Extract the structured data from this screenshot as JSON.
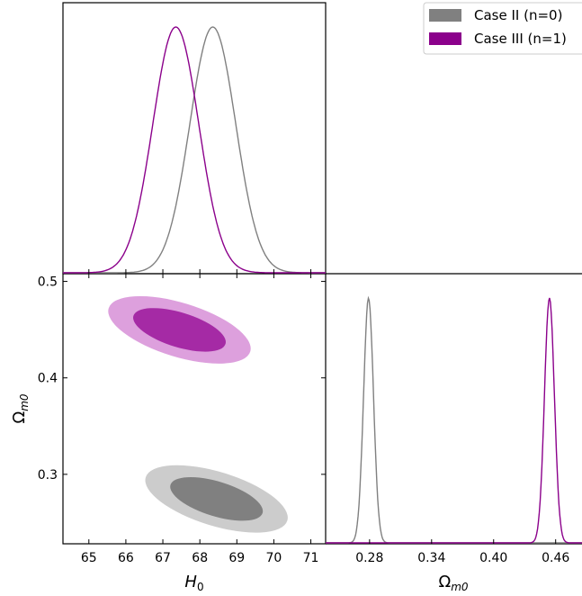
{
  "chart_data": {
    "type": "triangle-plot",
    "series": [
      {
        "name": "Case II (n=0)",
        "line_color": "#808080",
        "fill_outer": "#cccccc",
        "fill_inner": "#808080",
        "H0_peak": 68.35,
        "H0_sigma": 0.62,
        "Om_peak": 0.279,
        "Om_sigma": 0.0048,
        "contour_center": [
          68.45,
          0.2745
        ],
        "contour_outer_halfwidth_H0": 2.0,
        "contour_outer_halfwidth_Om": 0.028,
        "contour_inner_halfwidth_H0": 1.3,
        "contour_inner_halfwidth_Om": 0.018
      },
      {
        "name": "Case III (n=1)",
        "line_color": "#8b008b",
        "fill_outer": "#dda0dd",
        "fill_inner": "#a52aa5",
        "H0_peak": 67.35,
        "H0_sigma": 0.62,
        "Om_peak": 0.454,
        "Om_sigma": 0.0048,
        "contour_center": [
          67.45,
          0.4498
        ],
        "contour_outer_halfwidth_H0": 2.0,
        "contour_outer_halfwidth_Om": 0.028,
        "contour_inner_halfwidth_H0": 1.3,
        "contour_inner_halfwidth_Om": 0.018
      }
    ],
    "panels": {
      "H0_1d": {
        "xlim": [
          64.3,
          71.4
        ]
      },
      "contour": {
        "xlim": [
          64.3,
          71.4
        ],
        "ylim": [
          0.228,
          0.508
        ],
        "xlabel": "H_0",
        "ylabel": "Ω_m0"
      },
      "Om_1d": {
        "xlim": [
          0.2375,
          0.4855
        ],
        "xlabel": "Ω_m0"
      }
    },
    "ticks": {
      "H0": [
        65,
        66,
        67,
        68,
        69,
        70,
        71
      ],
      "Om_y": [
        0.3,
        0.4,
        0.5
      ],
      "Om_x": [
        0.28,
        0.34,
        0.4,
        0.46
      ]
    },
    "tick_labels": {
      "H0": [
        "65",
        "66",
        "67",
        "68",
        "69",
        "70",
        "71"
      ],
      "Om_y": [
        "0.3",
        "0.4",
        "0.5"
      ],
      "Om_x": [
        "0.28",
        "0.34",
        "0.40",
        "0.46"
      ]
    },
    "legend": [
      "Case II (n=0)",
      "Case III (n=1)"
    ],
    "legend_position": "top-right",
    "xlabel_H0": {
      "main": "H",
      "sub": "0"
    },
    "xlabel_Om": {
      "main": "Ω",
      "sub": "m0"
    },
    "ylabel_Om": {
      "main": "Ω",
      "sub": "m0"
    },
    "grid": false
  }
}
